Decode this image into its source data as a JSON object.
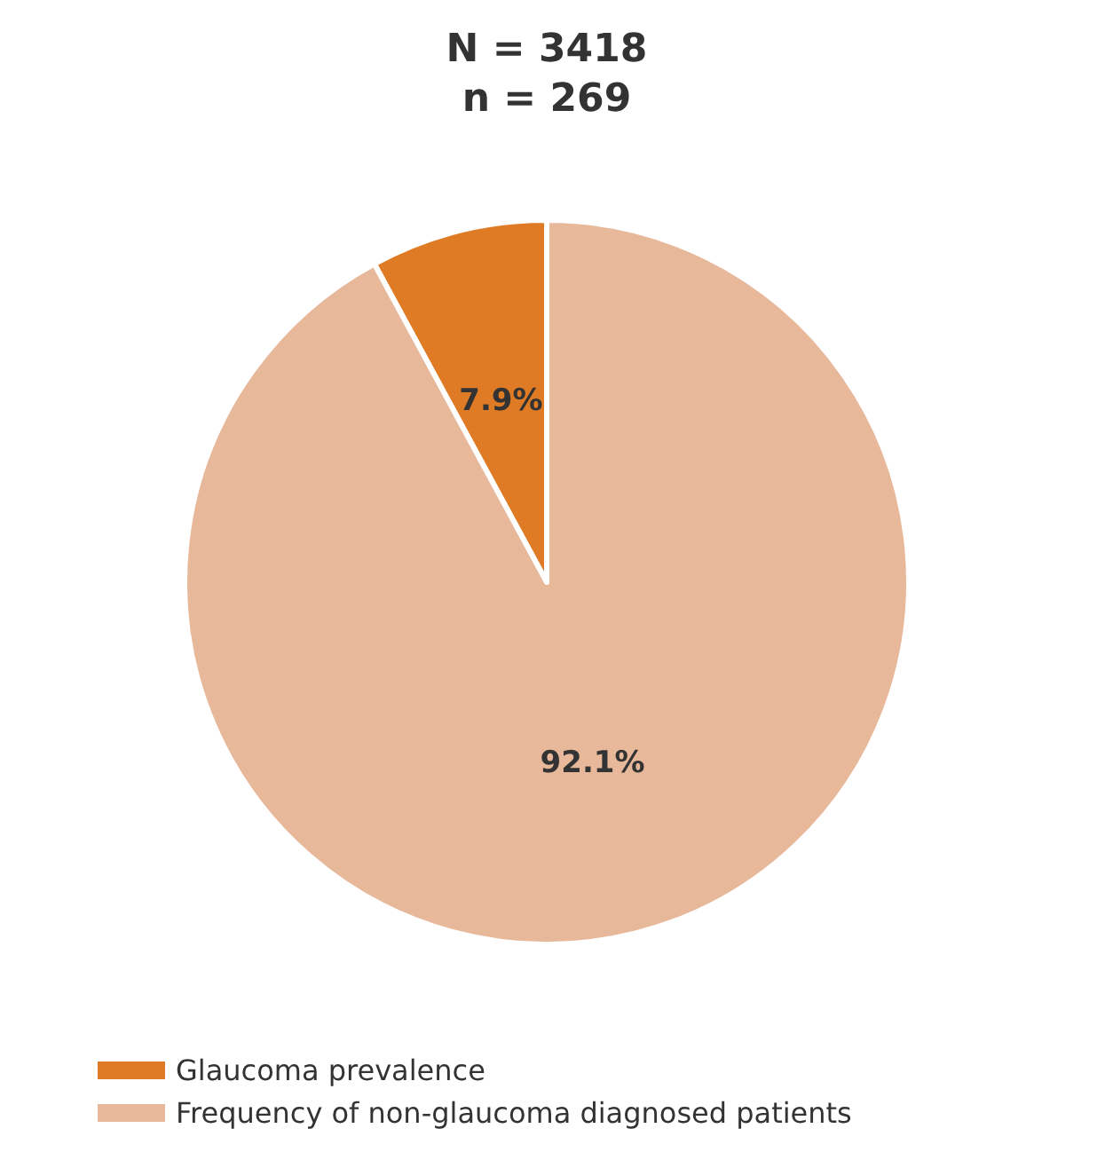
{
  "chart_data": {
    "type": "pie",
    "title": "N = 3418",
    "subtitle": "n = 269",
    "categories": [
      "Glaucoma prevalence",
      "Frequency of non-glaucoma diagnosed patients"
    ],
    "values": [
      7.9,
      92.1
    ],
    "colors": [
      "#e07b25",
      "#e8b89a"
    ],
    "value_labels": [
      "7.9%",
      "92.1%"
    ],
    "legend": "bottom left"
  }
}
